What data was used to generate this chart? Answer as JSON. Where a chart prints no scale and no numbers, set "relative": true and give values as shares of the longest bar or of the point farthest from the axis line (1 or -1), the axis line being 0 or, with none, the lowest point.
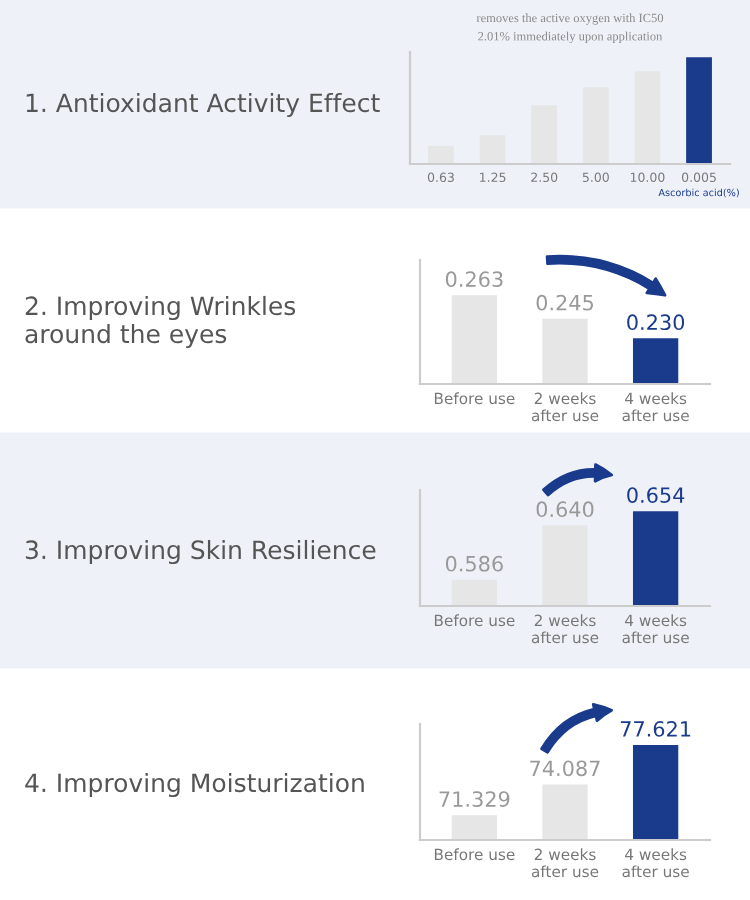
{
  "chart_data": [
    {
      "type": "bar",
      "title": "1. Antioxidant Activity Effect",
      "subtitle": "removes the active oxygen with IC50\n2.01% immediately upon application",
      "relative": true,
      "categories": [
        "0.63",
        "1.25",
        "2.50",
        "5.00",
        "10.00",
        "0.005"
      ],
      "values": [
        0.17,
        0.27,
        0.55,
        0.72,
        0.87,
        1.0
      ],
      "colors": [
        "#e6e6e6",
        "#e6e6e6",
        "#e6e6e6",
        "#e6e6e6",
        "#e6e6e6",
        "#1a3a8c"
      ],
      "annotations": [
        "Ascorbic acid(%)"
      ]
    },
    {
      "type": "bar",
      "title": "2. Improving Wrinkles\naround the eyes",
      "categories": [
        "Before use",
        "2 weeks\nafter use",
        "4 weeks\nafter use"
      ],
      "values": [
        0.263,
        0.245,
        0.23
      ],
      "value_labels": [
        "0.263",
        "0.245",
        "0.230"
      ],
      "colors": [
        "#e6e6e6",
        "#e6e6e6",
        "#1a3a8c"
      ],
      "ylim": [
        0.195,
        0.29
      ]
    },
    {
      "type": "bar",
      "title": "3. Improving Skin Resilience",
      "categories": [
        "Before use",
        "2 weeks\nafter use",
        "4 weeks\nafter use"
      ],
      "values": [
        0.586,
        0.64,
        0.654
      ],
      "value_labels": [
        "0.586",
        "0.640",
        "0.654"
      ],
      "colors": [
        "#e6e6e6",
        "#e6e6e6",
        "#1a3a8c"
      ],
      "ylim": [
        0.56,
        0.675
      ]
    },
    {
      "type": "bar",
      "title": "4. Improving Moisturization",
      "categories": [
        "Before use",
        "2 weeks\nafter use",
        "4 weeks\nafter use"
      ],
      "values": [
        71.329,
        74.087,
        77.621
      ],
      "value_labels": [
        "71.329",
        "74.087",
        "77.621"
      ],
      "colors": [
        "#e6e6e6",
        "#e6e6e6",
        "#1a3a8c"
      ],
      "ylim": [
        69.1,
        79.5
      ]
    }
  ]
}
